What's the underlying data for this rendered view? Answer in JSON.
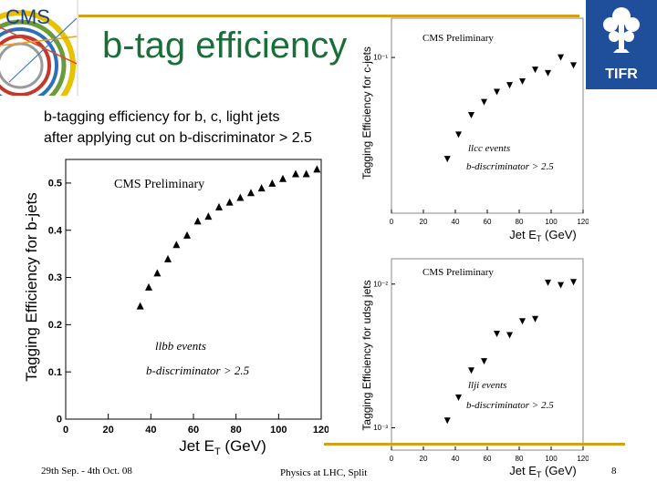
{
  "slide": {
    "title": "b-tag efficiency",
    "intro_line1": "b-tagging efficiency for b, c, light jets",
    "intro_line2": "after applying cut on b-discriminator > 2.5",
    "footer_left": "29th Sep. - 4th Oct. 08",
    "footer_center": "Physics at LHC, Split",
    "page_number": "8",
    "colors": {
      "title": "#1a6e3a",
      "accent_line": "#d4a017",
      "logo_blue": "#1f4e9b"
    }
  },
  "logos": {
    "left": "CMS",
    "right": "TIFR"
  },
  "chart_data": [
    {
      "id": "b",
      "type": "scatter",
      "title": "CMS Preliminary",
      "xlabel_main": "Jet E",
      "xlabel_sub": "T",
      "xlabel_unit": " (GeV)",
      "ylabel": "Tagging Efficiency for b-jets",
      "xlim": [
        0,
        120
      ],
      "ylim": [
        0,
        0.55
      ],
      "xticks": [
        "0",
        "20",
        "40",
        "60",
        "80",
        "100",
        "120"
      ],
      "yticks": [
        "0",
        "0.1",
        "0.2",
        "0.3",
        "0.4",
        "0.5"
      ],
      "annotations": [
        "llbb events",
        "b-discriminator > 2.5"
      ],
      "x": [
        35,
        39,
        43,
        48,
        52,
        57,
        62,
        67,
        72,
        77,
        82,
        87,
        92,
        97,
        102,
        108,
        113,
        118
      ],
      "y": [
        0.24,
        0.28,
        0.31,
        0.34,
        0.37,
        0.39,
        0.42,
        0.43,
        0.45,
        0.46,
        0.47,
        0.48,
        0.49,
        0.5,
        0.51,
        0.52,
        0.52,
        0.53
      ]
    },
    {
      "id": "c",
      "type": "scatter",
      "title": "CMS Preliminary",
      "xlabel_main": "Jet E",
      "xlabel_sub": "T",
      "xlabel_unit": " (GeV)",
      "ylabel": "Tagging Efficiency for c-jets",
      "log_y": true,
      "xlim": [
        0,
        120
      ],
      "ylim": [
        0.02,
        0.15
      ],
      "xticks": [
        "0",
        "20",
        "40",
        "60",
        "80",
        "100",
        "120"
      ],
      "yticks": [
        "10⁻¹"
      ],
      "annotations": [
        "llcc events",
        "b-discriminator > 2.5"
      ],
      "x": [
        35,
        42,
        50,
        58,
        66,
        74,
        82,
        90,
        98,
        106,
        114
      ],
      "y": [
        0.035,
        0.045,
        0.055,
        0.063,
        0.07,
        0.075,
        0.078,
        0.088,
        0.085,
        0.1,
        0.092
      ]
    },
    {
      "id": "udsg",
      "type": "scatter",
      "title": "CMS Preliminary",
      "xlabel_main": "Jet E",
      "xlabel_sub": "T",
      "xlabel_unit": " (GeV)",
      "ylabel": "Tagging Efficiency for udsg jets",
      "log_y": true,
      "xlim": [
        0,
        120
      ],
      "ylim": [
        0.0007,
        0.015
      ],
      "xticks": [
        "0",
        "20",
        "40",
        "60",
        "80",
        "100",
        "120"
      ],
      "yticks": [
        "10⁻²",
        "10⁻³"
      ],
      "annotations": [
        "llji events",
        "b-discriminator > 2.5"
      ],
      "x": [
        35,
        42,
        50,
        58,
        66,
        74,
        82,
        90,
        98,
        106,
        114
      ],
      "y": [
        0.00112,
        0.00162,
        0.0025,
        0.0029,
        0.0045,
        0.0044,
        0.0055,
        0.0057,
        0.0102,
        0.0098,
        0.0103
      ]
    }
  ]
}
